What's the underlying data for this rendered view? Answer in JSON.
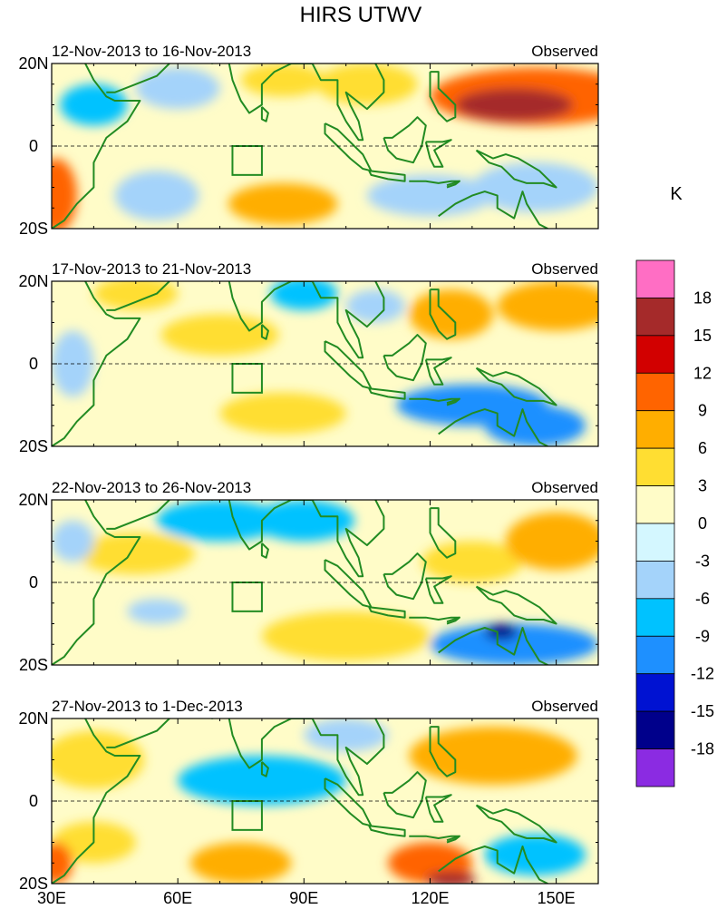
{
  "chart_data": {
    "type": "heatmap",
    "title": "HIRS UTWV",
    "variable_unit": "K",
    "x_axis": {
      "ticks": [
        "30E",
        "60E",
        "90E",
        "120E",
        "150E"
      ],
      "range": [
        30,
        160
      ]
    },
    "y_axis": {
      "ticks": [
        "20N",
        "0",
        "20S"
      ],
      "range": [
        -20,
        20
      ]
    },
    "colorbar": {
      "unit": "K",
      "levels": [
        "18",
        "15",
        "12",
        "9",
        "6",
        "3",
        "0",
        "-3",
        "-6",
        "-9",
        "-12",
        "-15",
        "-18"
      ],
      "colors": [
        "#ff6ec4",
        "#a52a2a",
        "#d20000",
        "#ff6400",
        "#ffae00",
        "#ffde32",
        "#fffcc8",
        "#d4f7ff",
        "#a4d3fa",
        "#00c2ff",
        "#1e90ff",
        "#0012d2",
        "#00008b",
        "#8b2be2"
      ]
    },
    "panels": [
      {
        "period": "12-Nov-2013 to 16-Nov-2013",
        "tag": "Observed",
        "features": [
          {
            "lon": 140,
            "lat": 10,
            "value": 16,
            "rx": 14,
            "ry": 4
          },
          {
            "lon": 145,
            "lat": 12,
            "value": 9,
            "rx": 25,
            "ry": 7
          },
          {
            "lon": 40,
            "lat": 10,
            "value": -8,
            "rx": 8,
            "ry": 5
          },
          {
            "lon": 31,
            "lat": -12,
            "value": 9,
            "rx": 5,
            "ry": 9
          },
          {
            "lon": 85,
            "lat": -14,
            "value": 8,
            "rx": 13,
            "ry": 5
          },
          {
            "lon": 105,
            "lat": 15,
            "value": 4,
            "rx": 12,
            "ry": 5
          },
          {
            "lon": 85,
            "lat": 16,
            "value": 4,
            "rx": 10,
            "ry": 4
          },
          {
            "lon": 120,
            "lat": -12,
            "value": -6,
            "rx": 15,
            "ry": 5
          },
          {
            "lon": 145,
            "lat": -10,
            "value": -5,
            "rx": 15,
            "ry": 6
          },
          {
            "lon": 60,
            "lat": 14,
            "value": -4,
            "rx": 10,
            "ry": 5
          },
          {
            "lon": 55,
            "lat": -12,
            "value": -4,
            "rx": 10,
            "ry": 6
          }
        ]
      },
      {
        "period": "17-Nov-2013 to 21-Nov-2013",
        "tag": "Observed",
        "features": [
          {
            "lon": 150,
            "lat": 14,
            "value": 7,
            "rx": 14,
            "ry": 6
          },
          {
            "lon": 125,
            "lat": 12,
            "value": 6,
            "rx": 10,
            "ry": 6
          },
          {
            "lon": 70,
            "lat": 7,
            "value": 5,
            "rx": 14,
            "ry": 5
          },
          {
            "lon": 85,
            "lat": -12,
            "value": 5,
            "rx": 15,
            "ry": 5
          },
          {
            "lon": 130,
            "lat": -10,
            "value": -10,
            "rx": 18,
            "ry": 5
          },
          {
            "lon": 145,
            "lat": -15,
            "value": -10,
            "rx": 12,
            "ry": 5
          },
          {
            "lon": 90,
            "lat": 17,
            "value": -7,
            "rx": 8,
            "ry": 4
          },
          {
            "lon": 35,
            "lat": 0,
            "value": -6,
            "rx": 5,
            "ry": 8
          },
          {
            "lon": 107,
            "lat": 14,
            "value": -6,
            "rx": 7,
            "ry": 4
          },
          {
            "lon": 50,
            "lat": 17,
            "value": 3,
            "rx": 10,
            "ry": 4
          }
        ]
      },
      {
        "period": "22-Nov-2013 to 26-Nov-2013",
        "tag": "Observed",
        "features": [
          {
            "lon": 90,
            "lat": 15,
            "value": -9,
            "rx": 12,
            "ry": 5
          },
          {
            "lon": 70,
            "lat": 15,
            "value": -7,
            "rx": 15,
            "ry": 5
          },
          {
            "lon": 140,
            "lat": -15,
            "value": -10,
            "rx": 20,
            "ry": 5
          },
          {
            "lon": 137,
            "lat": -12,
            "value": -16,
            "rx": 4,
            "ry": 2
          },
          {
            "lon": 150,
            "lat": 10,
            "value": 6,
            "rx": 12,
            "ry": 7
          },
          {
            "lon": 130,
            "lat": 5,
            "value": 5,
            "rx": 12,
            "ry": 5
          },
          {
            "lon": 50,
            "lat": 7,
            "value": 4,
            "rx": 14,
            "ry": 5
          },
          {
            "lon": 100,
            "lat": -13,
            "value": 5,
            "rx": 20,
            "ry": 6
          },
          {
            "lon": 35,
            "lat": 10,
            "value": -6,
            "rx": 5,
            "ry": 5
          },
          {
            "lon": 55,
            "lat": -7,
            "value": -5,
            "rx": 7,
            "ry": 3
          }
        ]
      },
      {
        "period": "27-Nov-2013 to 1-Dec-2013",
        "tag": "Observed",
        "features": [
          {
            "lon": 120,
            "lat": -15,
            "value": 10,
            "rx": 10,
            "ry": 5
          },
          {
            "lon": 125,
            "lat": -19,
            "value": 15,
            "rx": 6,
            "ry": 2
          },
          {
            "lon": 145,
            "lat": -13,
            "value": -8,
            "rx": 12,
            "ry": 5
          },
          {
            "lon": 80,
            "lat": 5,
            "value": -7,
            "rx": 20,
            "ry": 6
          },
          {
            "lon": 135,
            "lat": 11,
            "value": 6,
            "rx": 20,
            "ry": 7
          },
          {
            "lon": 40,
            "lat": 10,
            "value": 5,
            "rx": 12,
            "ry": 7
          },
          {
            "lon": 75,
            "lat": -15,
            "value": 6,
            "rx": 12,
            "ry": 5
          },
          {
            "lon": 31,
            "lat": -15,
            "value": 9,
            "rx": 4,
            "ry": 5
          },
          {
            "lon": 100,
            "lat": 16,
            "value": -5,
            "rx": 10,
            "ry": 4
          },
          {
            "lon": 40,
            "lat": -10,
            "value": 4,
            "rx": 10,
            "ry": 5
          }
        ]
      }
    ]
  }
}
